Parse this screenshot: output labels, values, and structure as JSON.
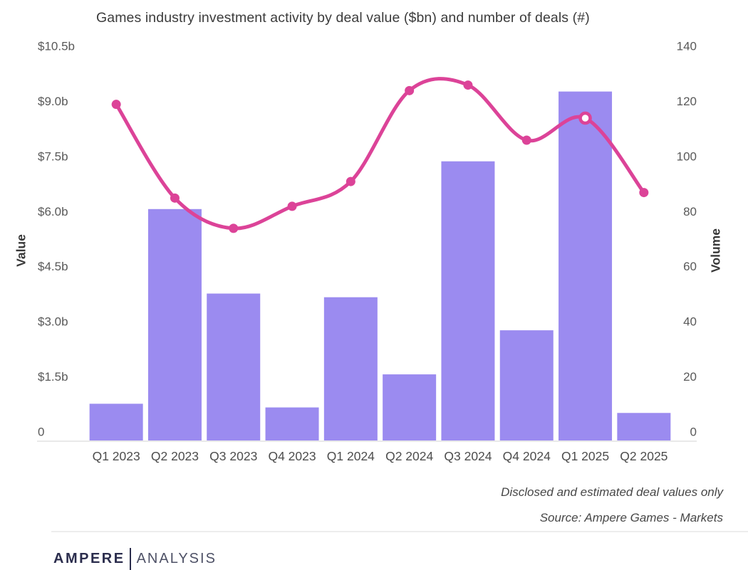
{
  "title": "Games industry investment activity by deal value ($bn) and number of deals (#)",
  "footer": {
    "note1": "Disclosed and estimated deal values only",
    "note2": "Source: Ampere Games - Markets"
  },
  "logo": {
    "primary": "AMPERE",
    "secondary": "ANALYSIS"
  },
  "colors": {
    "bar": "#9b8bf0",
    "line": "#dc4398",
    "point": "#dc4398",
    "highlight_fill": "#ffffff",
    "baseline": "#e9e9e9",
    "tick_text": "#595959",
    "x_label_text": "#4d4d4d"
  },
  "chart_data": {
    "type": "bar+line combo, dual axis",
    "title": "Games industry investment activity by deal value ($bn) and number of deals (#)",
    "categories": [
      "Q1 2023",
      "Q2 2023",
      "Q3 2023",
      "Q4 2023",
      "Q1 2024",
      "Q2 2024",
      "Q3 2024",
      "Q4 2024",
      "Q1 2025",
      "Q2 2025"
    ],
    "series": [
      {
        "name": "Deal value",
        "type": "bar",
        "axis": "left",
        "unit": "$bn",
        "values": [
          1.0,
          6.3,
          4.0,
          0.9,
          3.9,
          1.8,
          7.6,
          3.0,
          9.5,
          0.75
        ]
      },
      {
        "name": "Number of deals",
        "type": "line",
        "axis": "right",
        "unit": "#",
        "values": [
          122,
          88,
          77,
          85,
          94,
          127,
          129,
          109,
          117,
          90
        ],
        "highlight_index": 8
      }
    ],
    "left_axis": {
      "label": "Value",
      "min": 0,
      "max": 10.5,
      "ticks": [
        "$10.5b",
        "$9.0b",
        "$7.5b",
        "$6.0b",
        "$4.5b",
        "$3.0b",
        "$1.5b",
        "0"
      ]
    },
    "right_axis": {
      "label": "Volume",
      "min": 0,
      "max": 140,
      "ticks": [
        "140",
        "120",
        "100",
        "80",
        "60",
        "40",
        "20",
        "0"
      ]
    },
    "grid": false,
    "legend": "none"
  }
}
